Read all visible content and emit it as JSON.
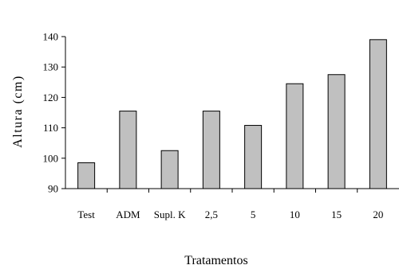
{
  "chart_data": {
    "type": "bar",
    "title": "",
    "xlabel": "Tratamentos",
    "ylabel": "Altura (cm)",
    "categories": [
      "Test",
      "ADM",
      "Supl. K",
      "2,5",
      "5",
      "10",
      "15",
      "20"
    ],
    "values": [
      98.5,
      115.5,
      102.5,
      115.5,
      110.8,
      124.5,
      127.5,
      139
    ],
    "ylim": [
      90,
      140
    ],
    "yticks": [
      90,
      100,
      110,
      120,
      130,
      140
    ],
    "grid": false,
    "legend": "none",
    "colors": {
      "bar_fill": "#c0c0c0",
      "bar_stroke": "#000000"
    }
  }
}
